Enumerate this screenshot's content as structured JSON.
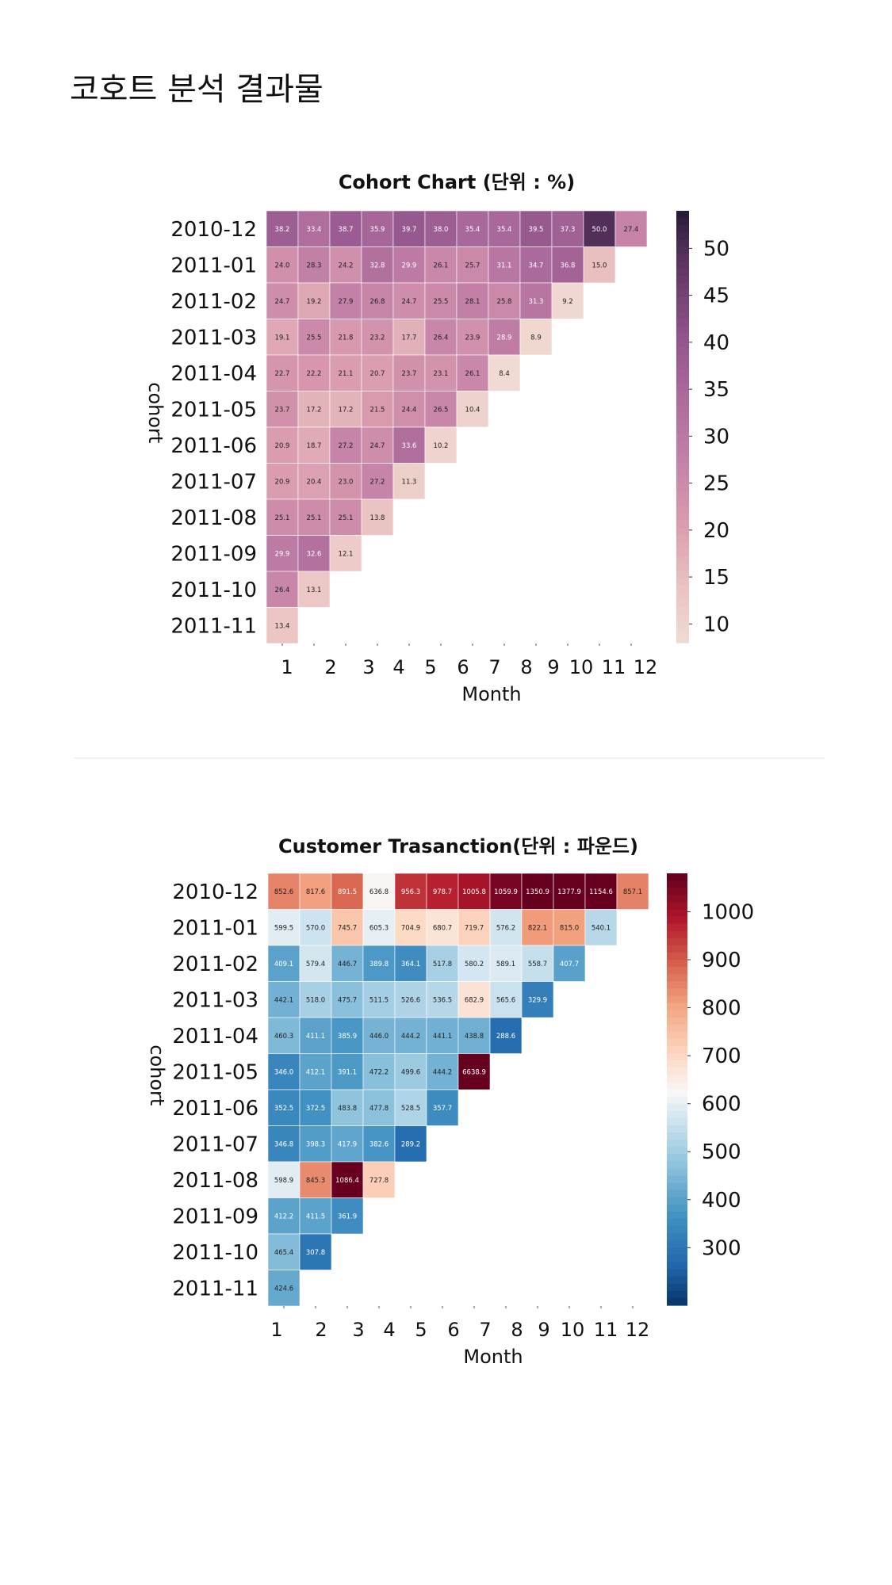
{
  "page": {
    "title": "코호트 분석 결과물"
  },
  "chart_data": [
    {
      "type": "heatmap",
      "title": "Cohort Chart (단위 : %)",
      "xlabel": "Month",
      "ylabel": "cohort",
      "x_tick_labels": [
        "1",
        "2",
        "3",
        "4",
        "5",
        "6",
        "7",
        "8",
        "9",
        "10",
        "11",
        "12"
      ],
      "rows": [
        "2010-12",
        "2011-01",
        "2011-02",
        "2011-03",
        "2011-04",
        "2011-05",
        "2011-06",
        "2011-07",
        "2011-08",
        "2011-09",
        "2011-10",
        "2011-11"
      ],
      "values": [
        [
          "38.2",
          "33.4",
          "38.7",
          "35.9",
          "39.7",
          "38.0",
          "35.4",
          "35.4",
          "39.5",
          "37.3",
          "50.0",
          "27.4"
        ],
        [
          "24.0",
          "28.3",
          "24.2",
          "32.8",
          "29.9",
          "26.1",
          "25.7",
          "31.1",
          "34.7",
          "36.8",
          "15.0"
        ],
        [
          "24.7",
          "19.2",
          "27.9",
          "26.8",
          "24.7",
          "25.5",
          "28.1",
          "25.8",
          "31.3",
          "9.2"
        ],
        [
          "19.1",
          "25.5",
          "21.8",
          "23.2",
          "17.7",
          "26.4",
          "23.9",
          "28.9",
          "8.9"
        ],
        [
          "22.7",
          "22.2",
          "21.1",
          "20.7",
          "23.7",
          "23.1",
          "26.1",
          "8.4"
        ],
        [
          "23.7",
          "17.2",
          "17.2",
          "21.5",
          "24.4",
          "26.5",
          "10.4"
        ],
        [
          "20.9",
          "18.7",
          "27.2",
          "24.7",
          "33.6",
          "10.2"
        ],
        [
          "20.9",
          "20.4",
          "23.0",
          "27.2",
          "11.3"
        ],
        [
          "25.1",
          "25.1",
          "25.1",
          "13.8"
        ],
        [
          "29.9",
          "32.6",
          "12.1"
        ],
        [
          "26.4",
          "13.1"
        ],
        [
          "13.4"
        ]
      ],
      "colorbar": {
        "min": 8,
        "max": 54,
        "ticks": [
          "50",
          "45",
          "40",
          "35",
          "30",
          "25",
          "20",
          "15",
          "10"
        ],
        "palette": "rocket-pink"
      }
    },
    {
      "type": "heatmap",
      "title": "Customer Trasanction(단위 : 파운드)",
      "xlabel": "Month",
      "ylabel": "cohort",
      "x_tick_labels": [
        "1",
        "2",
        "3",
        "4",
        "5",
        "6",
        "7",
        "8",
        "9",
        "10",
        "11",
        "12"
      ],
      "rows": [
        "2010-12",
        "2011-01",
        "2011-02",
        "2011-03",
        "2011-04",
        "2011-05",
        "2011-06",
        "2011-07",
        "2011-08",
        "2011-09",
        "2011-10",
        "2011-11"
      ],
      "values": [
        [
          "852.6",
          "817.6",
          "891.5",
          "636.8",
          "956.3",
          "978.7",
          "1005.8",
          "1059.9",
          "1350.9",
          "1377.9",
          "1154.6",
          "857.1"
        ],
        [
          "599.5",
          "570.0",
          "745.7",
          "605.3",
          "704.9",
          "680.7",
          "719.7",
          "576.2",
          "822.1",
          "815.0",
          "540.1"
        ],
        [
          "409.1",
          "579.4",
          "446.7",
          "389.8",
          "364.1",
          "517.8",
          "580.2",
          "589.1",
          "558.7",
          "407.7"
        ],
        [
          "442.1",
          "518.0",
          "475.7",
          "511.5",
          "526.6",
          "536.5",
          "682.9",
          "565.6",
          "329.9"
        ],
        [
          "460.3",
          "411.1",
          "385.9",
          "446.0",
          "444.2",
          "441.1",
          "438.8",
          "288.6"
        ],
        [
          "346.0",
          "412.1",
          "391.1",
          "472.2",
          "499.6",
          "444.2",
          "6638.9"
        ],
        [
          "352.5",
          "372.5",
          "483.8",
          "477.8",
          "528.5",
          "357.7"
        ],
        [
          "346.8",
          "398.3",
          "417.9",
          "382.6",
          "289.2"
        ],
        [
          "598.9",
          "845.3",
          "1086.4",
          "727.8"
        ],
        [
          "412.2",
          "411.5",
          "361.9"
        ],
        [
          "465.4",
          "307.8"
        ],
        [
          "424.6"
        ]
      ],
      "colorbar": {
        "min": 180,
        "max": 1080,
        "ticks": [
          "1000",
          "900",
          "800",
          "700",
          "600",
          "500",
          "400",
          "300"
        ],
        "palette": "RdBu_r"
      }
    }
  ]
}
